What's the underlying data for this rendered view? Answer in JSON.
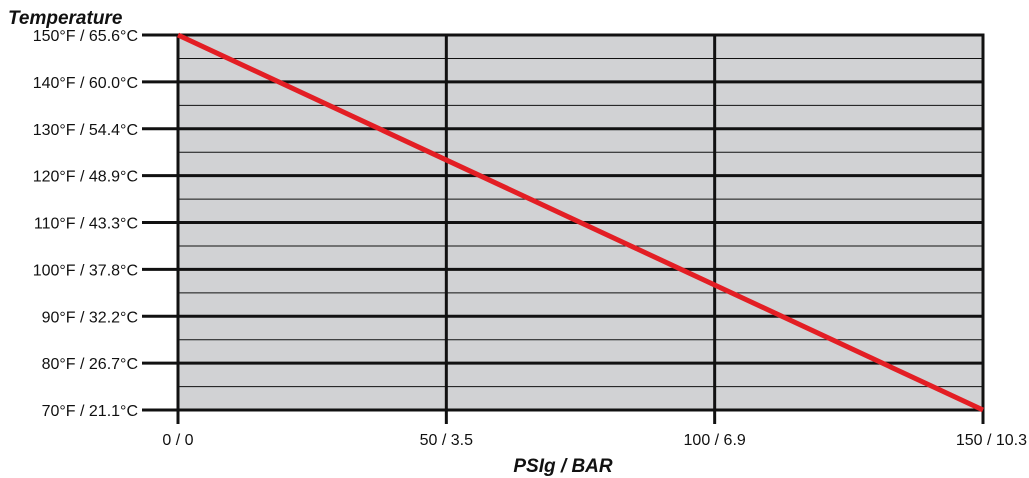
{
  "chart_data": {
    "type": "line",
    "title": "",
    "ylabel": "Temperature",
    "xlabel": "PSIg / BAR",
    "x_ticks": [
      {
        "value": 0,
        "label": "0 / 0"
      },
      {
        "value": 50,
        "label": "50 / 3.5"
      },
      {
        "value": 100,
        "label": "100 / 6.9"
      },
      {
        "value": 150,
        "label": "150 / 10.3"
      }
    ],
    "y_ticks": [
      {
        "value": 70,
        "label": "70°F / 21.1°C"
      },
      {
        "value": 80,
        "label": "80°F / 26.7°C"
      },
      {
        "value": 90,
        "label": "90°F / 32.2°C"
      },
      {
        "value": 100,
        "label": "100°F / 37.8°C"
      },
      {
        "value": 110,
        "label": "110°F / 43.3°C"
      },
      {
        "value": 120,
        "label": "120°F / 48.9°C"
      },
      {
        "value": 130,
        "label": "130°F / 54.4°C"
      },
      {
        "value": 140,
        "label": "140°F / 60.0°C"
      },
      {
        "value": 150,
        "label": "150°F / 65.6°C"
      }
    ],
    "xlim": [
      0,
      150
    ],
    "ylim": [
      70,
      150
    ],
    "minor_y_step": 5,
    "grid": true,
    "series": [
      {
        "x": [
          0,
          150
        ],
        "y": [
          150,
          70
        ],
        "color": "#e31e24"
      }
    ],
    "colors": {
      "plot_background": "#d1d2d4",
      "grid": "#111111",
      "line": "#e31e24"
    }
  }
}
